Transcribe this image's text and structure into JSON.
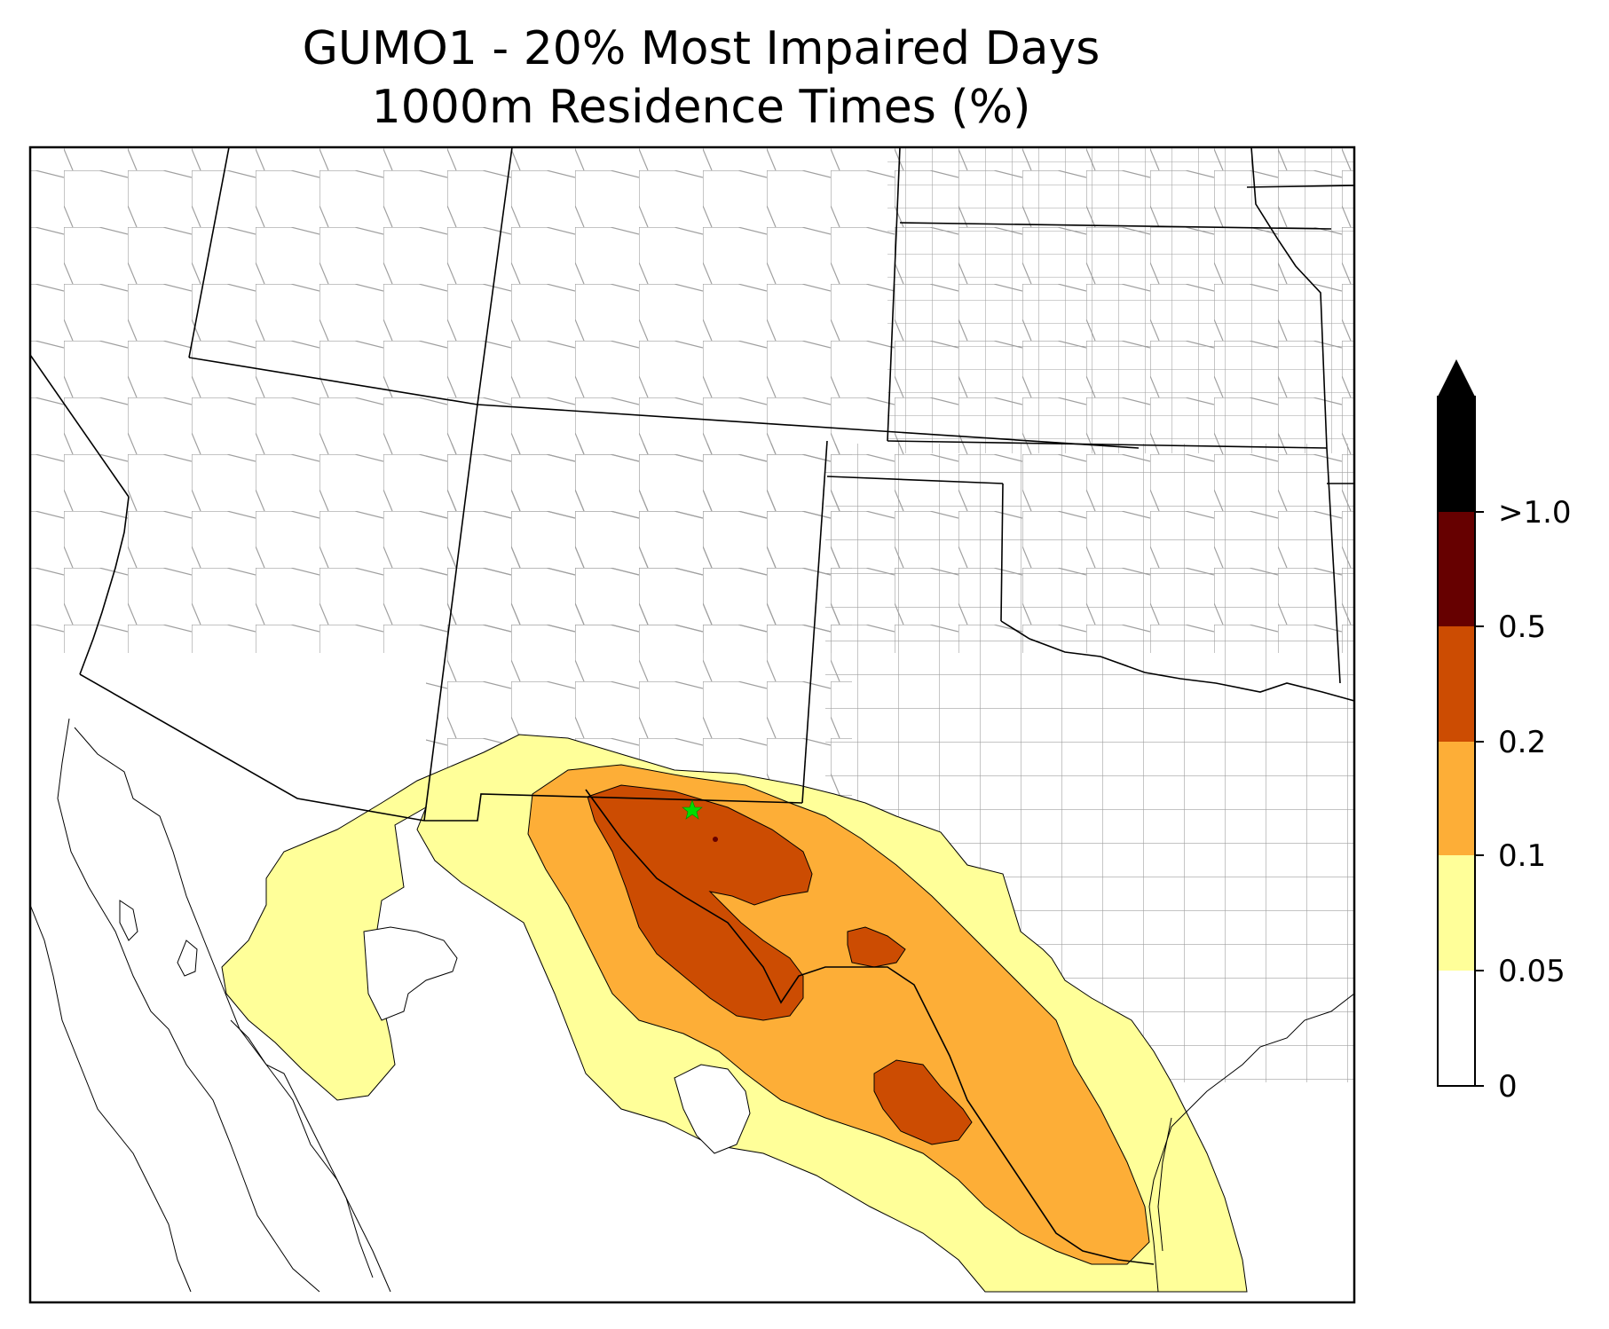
{
  "title": {
    "line1": "GUMO1 - 20% Most Impaired Days",
    "line2": "1000m Residence Times (%)"
  },
  "colorbar": {
    "levels": [
      {
        "label": "0",
        "color": "#ffffff"
      },
      {
        "label": "0.05",
        "color": "#ffff99"
      },
      {
        "label": "0.1",
        "color": "#fdae37"
      },
      {
        "label": "0.2",
        "color": "#cc4c02"
      },
      {
        "label": "0.5",
        "color": "#660000"
      },
      {
        "label": ">1.0",
        "color": "#000000"
      }
    ]
  },
  "site": {
    "marker_color": "#00dd00",
    "icon": "star-icon"
  },
  "colors": {
    "state_border": "#000000",
    "county_border": "#a0a0a0",
    "coast": "#000000"
  }
}
